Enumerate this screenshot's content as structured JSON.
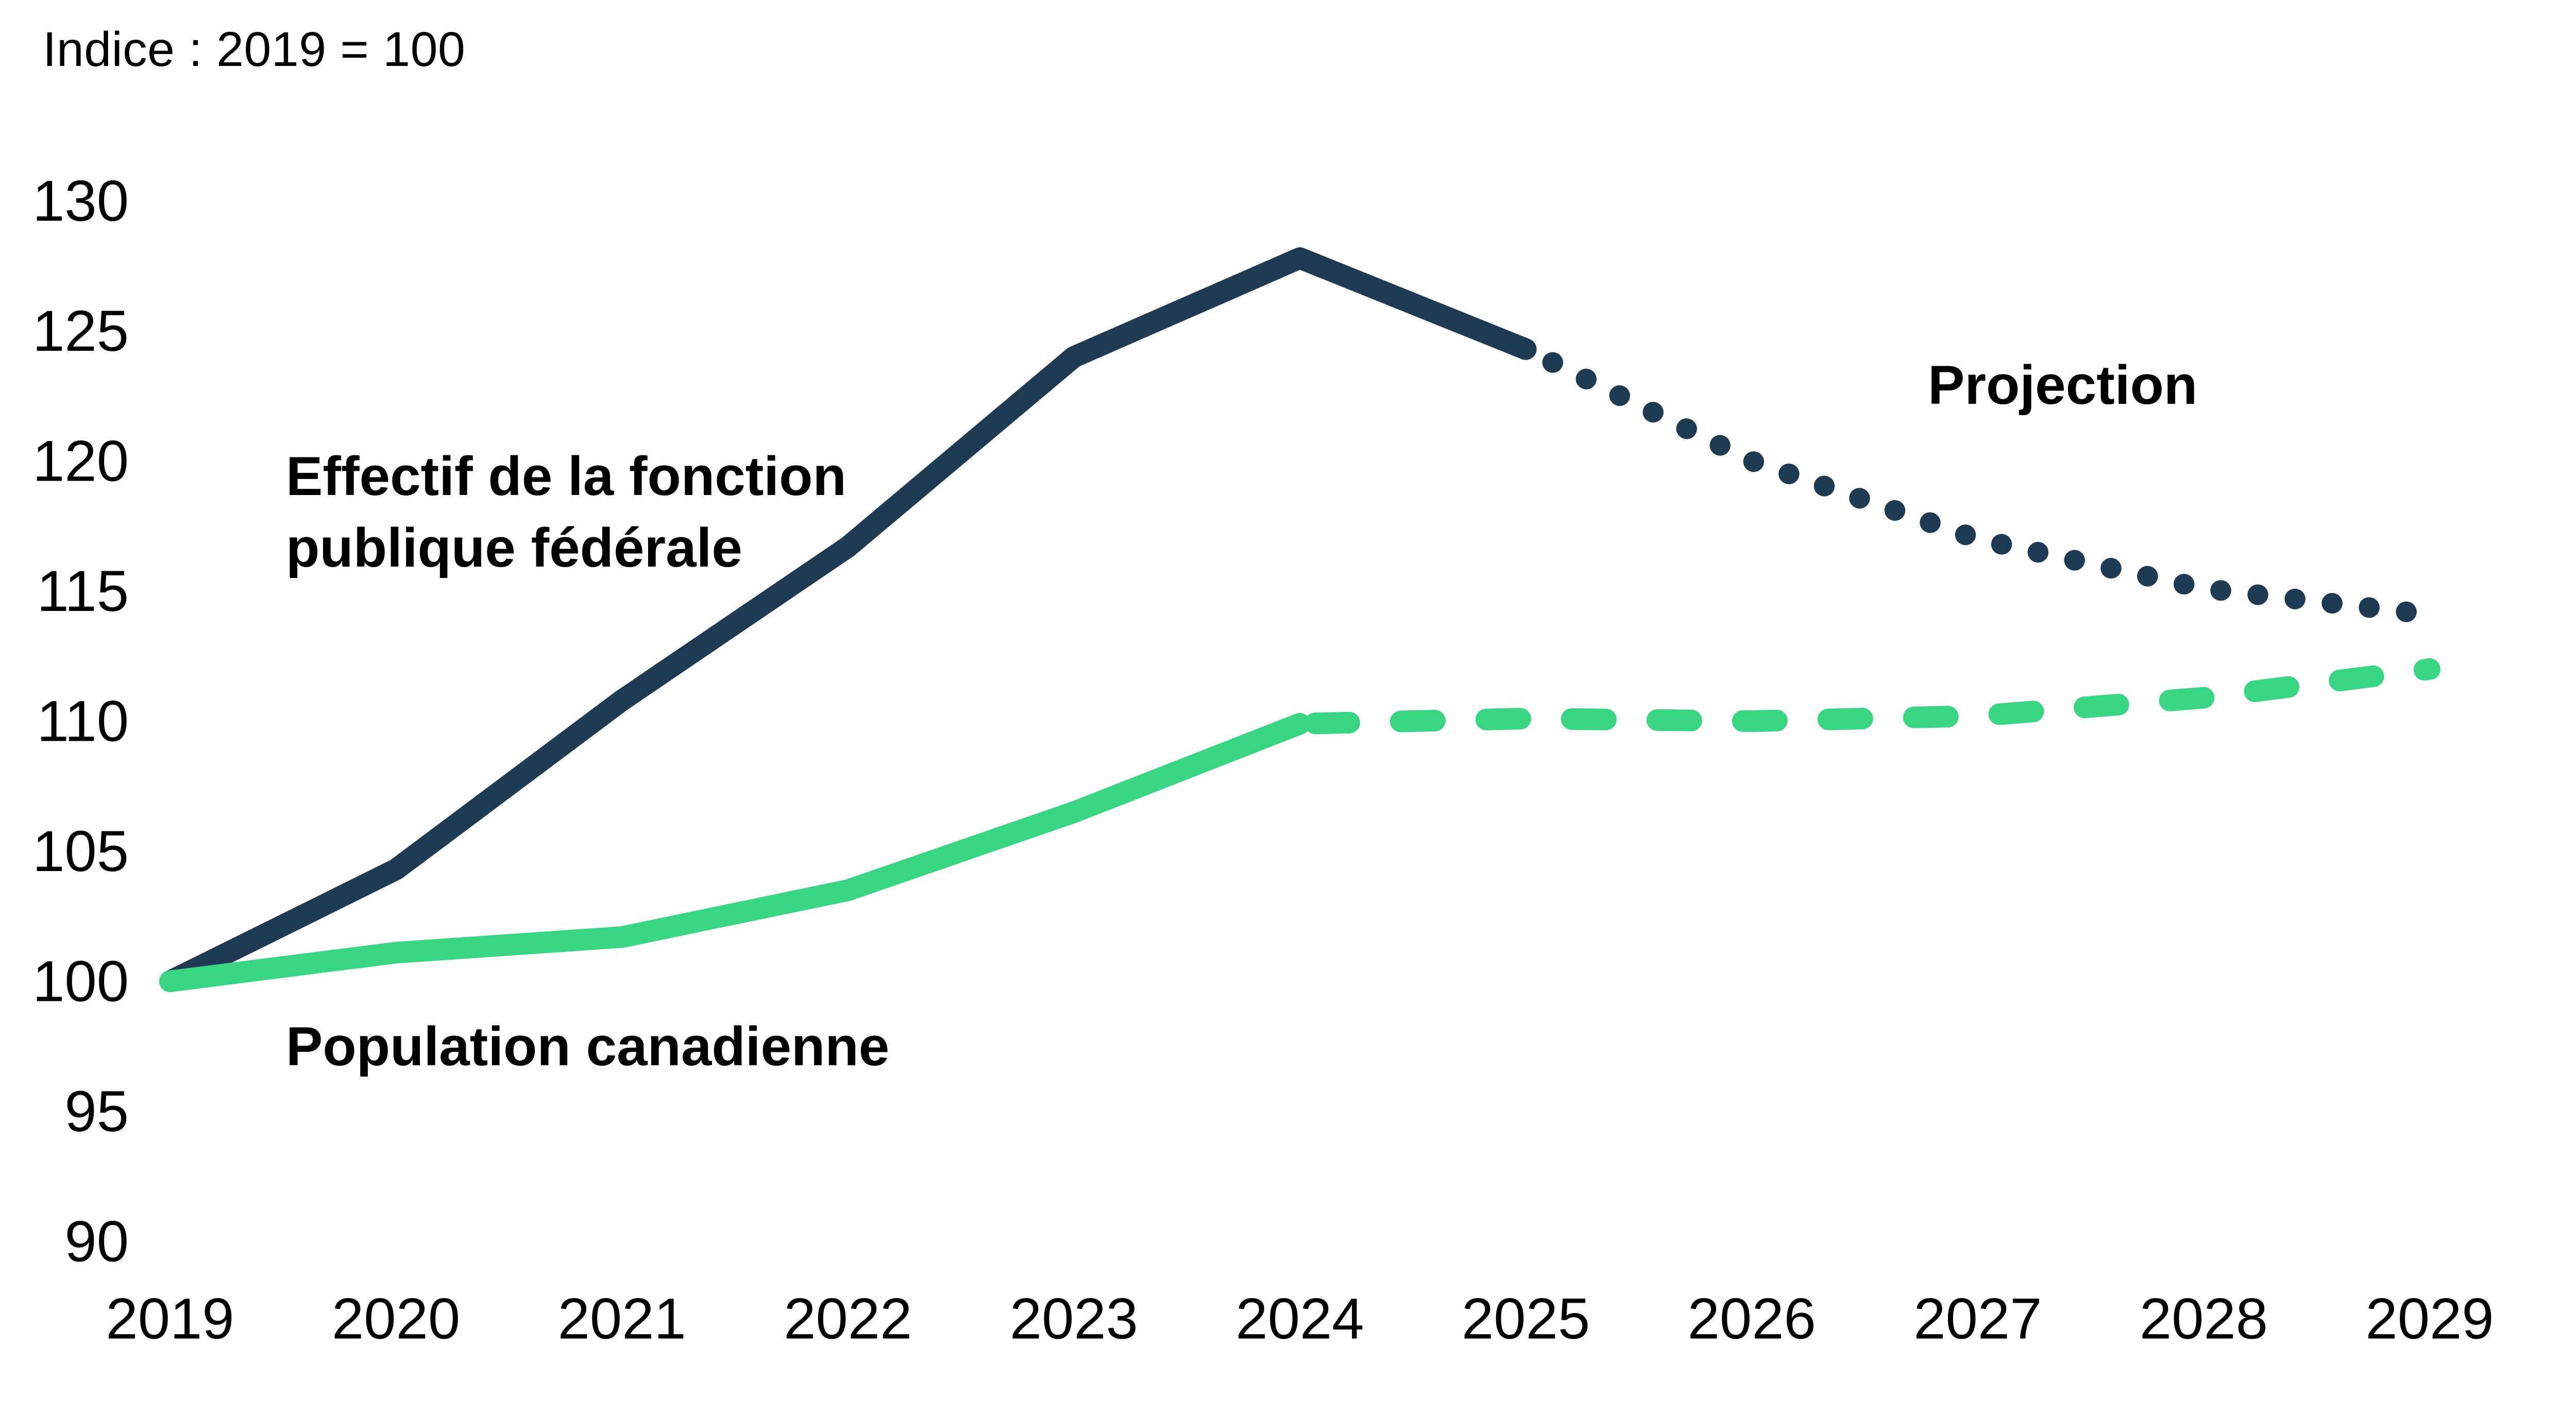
{
  "title": "Indice : 2019 = 100",
  "colors": {
    "effectif": "#1F3B54",
    "population": "#38D583",
    "text": "#000000",
    "background": "#FFFFFF"
  },
  "annotations": {
    "effectif_label": "Effectif de la fonction\npublique fédérale",
    "population_label": "Population canadienne",
    "projection_label": "Projection"
  },
  "chart_data": {
    "type": "line",
    "title": "Indice : 2019 = 100",
    "x": [
      2019,
      2020,
      2021,
      2022,
      2023,
      2024,
      2025,
      2026,
      2027,
      2028,
      2029
    ],
    "series": [
      {
        "id": "effectif",
        "name": "Effectif de la fonction publique fédérale",
        "color": "#1F3B54",
        "values": [
          100,
          104.3,
          110.8,
          116.7,
          124.0,
          127.8,
          124.3,
          120.0,
          117.0,
          115.1,
          114.1
        ],
        "solid_through": 2025,
        "projection_style": "dotted"
      },
      {
        "id": "population",
        "name": "Population canadienne",
        "color": "#38D583",
        "values": [
          100,
          101.1,
          101.7,
          103.5,
          106.5,
          109.9,
          110.1,
          110.0,
          110.2,
          110.9,
          112.0
        ],
        "solid_through": 2024,
        "projection_style": "dashed"
      }
    ],
    "xlabel": "",
    "ylabel": "",
    "ylim": [
      90,
      130
    ],
    "yticks": [
      90,
      95,
      100,
      105,
      110,
      115,
      120,
      125,
      130
    ],
    "xticks": [
      2019,
      2020,
      2021,
      2022,
      2023,
      2024,
      2025,
      2026,
      2027,
      2028,
      2029
    ],
    "grid": false,
    "legend": "inline-annotations"
  }
}
